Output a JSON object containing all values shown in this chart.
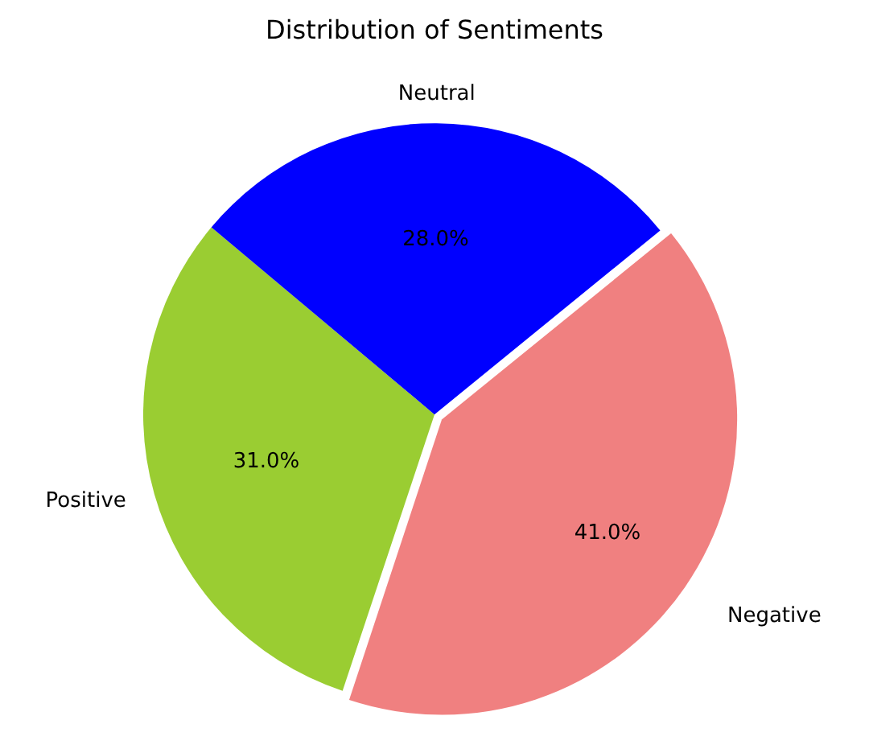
{
  "chart_data": {
    "type": "pie",
    "title": "Distribution of Sentiments",
    "categories": [
      "Positive",
      "Neutral",
      "Negative"
    ],
    "values": [
      31,
      28,
      41
    ],
    "colors": [
      "#9acd32",
      "#0000ff",
      "#f08080"
    ],
    "value_labels": [
      "31.0%",
      "28.0%",
      "41.0%"
    ],
    "legend": false
  }
}
